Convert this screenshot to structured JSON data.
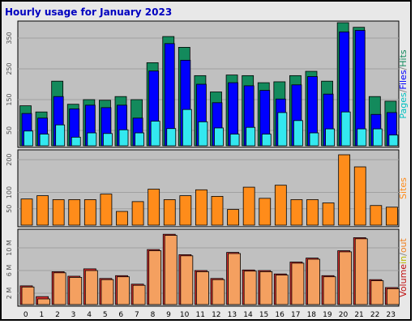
{
  "title": "Hourly usage for January 2023",
  "colors": {
    "title": "#0000c0",
    "panel_bg": "#c0c0c0",
    "grid": "#a0a0a0",
    "hits": "#138a5c",
    "files": "#0000ff",
    "pages": "#33e8f0",
    "sites": "#ff8c1a",
    "kbytes_in": "#e03030",
    "kbytes_out": "#f4a060",
    "volume_label": "#c01010",
    "in_label": "#b8b800",
    "slash_label": "#808080",
    "out_label": "#f08020",
    "pages_label": "#00c0c0",
    "files_label": "#0000ff",
    "hits_label": "#138a5c"
  },
  "chart_data": [
    {
      "type": "bar",
      "name": "hits_files_pages",
      "categories": [
        "0",
        "1",
        "2",
        "3",
        "4",
        "5",
        "6",
        "7",
        "8",
        "9",
        "10",
        "11",
        "12",
        "13",
        "14",
        "15",
        "16",
        "17",
        "18",
        "19",
        "20",
        "21",
        "22",
        "23"
      ],
      "ylim": [
        0,
        400
      ],
      "yticks": [
        "50",
        "150",
        "250",
        "350"
      ],
      "ytick_values": [
        50,
        150,
        250,
        350
      ],
      "axis_label_parts": [
        {
          "text": "Pages",
          "color_key": "pages_label"
        },
        {
          "text": "/",
          "color_key": "slash_label"
        },
        {
          "text": "Files",
          "color_key": "files_label"
        },
        {
          "text": "/",
          "color_key": "slash_label"
        },
        {
          "text": "Hits",
          "color_key": "hits_label"
        }
      ],
      "series": [
        {
          "key": "hits",
          "values": [
            130,
            110,
            210,
            135,
            150,
            148,
            160,
            150,
            270,
            355,
            320,
            228,
            175,
            230,
            228,
            205,
            208,
            228,
            242,
            210,
            400,
            385,
            160,
            145
          ]
        },
        {
          "key": "files",
          "values": [
            105,
            90,
            160,
            120,
            132,
            124,
            132,
            90,
            243,
            332,
            278,
            200,
            140,
            205,
            195,
            180,
            152,
            198,
            225,
            168,
            370,
            375,
            102,
            108
          ]
        },
        {
          "key": "pages",
          "values": [
            48,
            38,
            68,
            28,
            42,
            40,
            52,
            42,
            80,
            56,
            118,
            78,
            58,
            38,
            60,
            38,
            108,
            82,
            42,
            55,
            110,
            55,
            55,
            35
          ]
        }
      ]
    },
    {
      "type": "bar",
      "name": "sites",
      "categories": [
        "0",
        "1",
        "2",
        "3",
        "4",
        "5",
        "6",
        "7",
        "8",
        "9",
        "10",
        "11",
        "12",
        "13",
        "14",
        "15",
        "16",
        "17",
        "18",
        "19",
        "20",
        "21",
        "22",
        "23"
      ],
      "ylim": [
        0,
        225
      ],
      "yticks": [
        "50",
        "100",
        "200"
      ],
      "ytick_values": [
        50,
        100,
        200
      ],
      "axis_label_parts": [
        {
          "text": "Sites",
          "color_key": "sites"
        }
      ],
      "series": [
        {
          "key": "sites",
          "values": [
            80,
            90,
            78,
            78,
            78,
            95,
            42,
            72,
            110,
            78,
            90,
            108,
            88,
            48,
            116,
            82,
            122,
            78,
            78,
            68,
            215,
            178,
            60,
            55
          ]
        }
      ]
    },
    {
      "type": "bar",
      "name": "volume",
      "categories": [
        "0",
        "1",
        "2",
        "3",
        "4",
        "5",
        "6",
        "7",
        "8",
        "9",
        "10",
        "11",
        "12",
        "13",
        "14",
        "15",
        "16",
        "17",
        "18",
        "19",
        "20",
        "21",
        "22",
        "23"
      ],
      "ylim": [
        0,
        13
      ],
      "yticks": [
        "2 M",
        "6 M",
        "10 M"
      ],
      "ytick_values": [
        2,
        6,
        10
      ],
      "axis_label_parts": [
        {
          "text": "Volume",
          "color_key": "volume_label"
        },
        {
          "text": "in",
          "color_key": "in_label"
        },
        {
          "text": "/",
          "color_key": "slash_label"
        },
        {
          "text": "out",
          "color_key": "out_label"
        }
      ],
      "series": [
        {
          "key": "kbytes_in",
          "values": [
            3.3,
            1.4,
            5.8,
            5.0,
            6.3,
            4.6,
            5.1,
            3.6,
            9.7,
            12.4,
            8.8,
            6.0,
            4.6,
            9.2,
            6.1,
            6.0,
            5.4,
            7.5,
            8.2,
            5.1,
            9.5,
            11.8,
            4.4,
            3.0
          ]
        },
        {
          "key": "kbytes_out",
          "values": [
            3.1,
            1.0,
            5.6,
            4.8,
            6.0,
            4.4,
            4.9,
            3.4,
            9.5,
            12.2,
            8.6,
            5.8,
            4.4,
            9.0,
            5.9,
            5.8,
            5.2,
            7.3,
            8.0,
            4.9,
            9.3,
            11.6,
            4.2,
            2.8
          ]
        }
      ]
    }
  ]
}
